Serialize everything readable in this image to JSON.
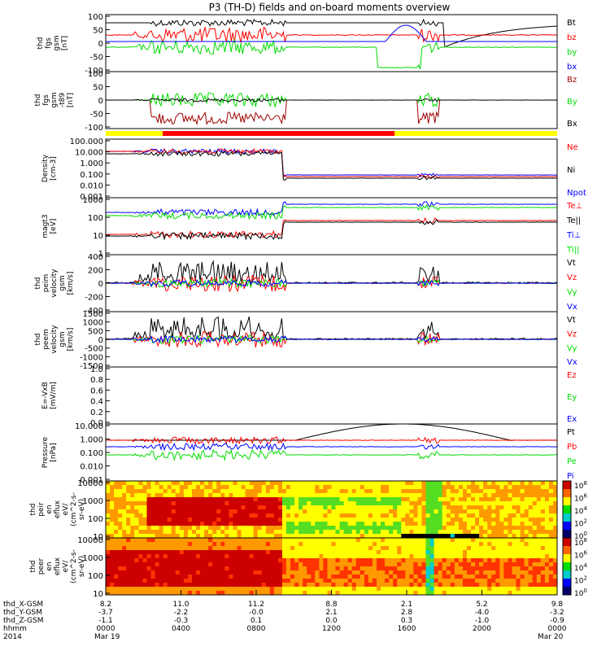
{
  "title": "P3 (TH-D) fields and on-board moments overview",
  "colors": {
    "black": "#000000",
    "red": "#ff0000",
    "green": "#00dd00",
    "blue": "#0000ff",
    "darkred": "#a00000",
    "yellow": "#ffff00"
  },
  "chart_data": {
    "type": "line",
    "x_ticks": [
      "0000",
      "0400",
      "0800",
      "1200",
      "1600",
      "2000",
      "0000"
    ],
    "dates": {
      "start": "Mar 19",
      "end": "Mar 20",
      "year": "2014"
    },
    "position_rows": [
      {
        "label": "thd_X-GSM",
        "values": [
          "8.2",
          "11.0",
          "11.2",
          "8.8",
          "2.1",
          "5.2",
          "9.8"
        ]
      },
      {
        "label": "thd_Y-GSM",
        "values": [
          "-3.7",
          "-2.2",
          "-0.0",
          "2.1",
          "2.8",
          "-4.0",
          "-3.2"
        ]
      },
      {
        "label": "thd_Z-GSM",
        "values": [
          "-1.1",
          "-0.3",
          "0.1",
          "0.0",
          "0.3",
          "-1.0",
          "-0.9"
        ]
      }
    ],
    "time_label": "hhmm",
    "mode_bar_colors": [
      "#ffff00",
      "#ff0000"
    ],
    "panels": [
      {
        "ylabel": [
          "thd",
          "fgs",
          "gsm",
          "[nT]"
        ],
        "yticks": [
          "100",
          "50",
          "0",
          "-50",
          "-100"
        ],
        "legend": [
          {
            "name": "Bt",
            "color": "#000000"
          },
          {
            "name": "bz",
            "color": "#ff0000"
          },
          {
            "name": "by",
            "color": "#00dd00"
          },
          {
            "name": "bx",
            "color": "#0000ff"
          }
        ]
      },
      {
        "ylabel": [
          "thd",
          "fgs",
          "gsm",
          "-t89",
          "[nT]"
        ],
        "yticks": [
          "100",
          "50",
          "0",
          "-50",
          "-100"
        ],
        "legend": [
          {
            "name": "Bz",
            "color": "#a00000"
          },
          {
            "name": "By",
            "color": "#00dd00"
          },
          {
            "name": "Bx",
            "color": "#000000"
          }
        ]
      },
      {
        "ylabel": [
          "Density",
          "[cm-3]"
        ],
        "yticks": [
          "100.000",
          "10.000",
          "1.000",
          "0.100",
          "0.010",
          "0.001"
        ],
        "legend": [
          {
            "name": "Ne",
            "color": "#ff0000"
          },
          {
            "name": "Ni",
            "color": "#000000"
          },
          {
            "name": "Npot",
            "color": "#0000ff"
          }
        ]
      },
      {
        "ylabel": [
          "magt3",
          "[eV]"
        ],
        "yticks": [
          "1000",
          "100",
          "10",
          "1"
        ],
        "legend": [
          {
            "name": "Te⊥",
            "color": "#ff0000"
          },
          {
            "name": "Te||",
            "color": "#000000"
          },
          {
            "name": "Ti⊥",
            "color": "#0000ff"
          },
          {
            "name": "Ti||",
            "color": "#00dd00"
          }
        ]
      },
      {
        "ylabel": [
          "thd",
          "peim",
          "velocity",
          "gsm",
          "[km/s]"
        ],
        "yticks": [
          "400",
          "200",
          "0",
          "-200",
          "-400"
        ],
        "legend": [
          {
            "name": "Vt",
            "color": "#000000"
          },
          {
            "name": "Vz",
            "color": "#ff0000"
          },
          {
            "name": "Vy",
            "color": "#00dd00"
          },
          {
            "name": "Vx",
            "color": "#0000ff"
          }
        ]
      },
      {
        "ylabel": [
          "thd",
          "peem",
          "velocity",
          "gsm",
          "[km/s]"
        ],
        "yticks": [
          "1500",
          "1000",
          "500",
          "0",
          "-500",
          "-1000",
          "-1500"
        ],
        "legend": [
          {
            "name": "Vt",
            "color": "#000000"
          },
          {
            "name": "Vz",
            "color": "#ff0000"
          },
          {
            "name": "Vy",
            "color": "#00dd00"
          },
          {
            "name": "Vx",
            "color": "#0000ff"
          }
        ]
      },
      {
        "ylabel": [
          "E=-VxB",
          "[mV/m]"
        ],
        "yticks": [
          "1.0",
          "0.8",
          "0.6",
          "0.4",
          "0.2",
          "0.0"
        ],
        "legend": [
          {
            "name": "Ez",
            "color": "#ff0000"
          },
          {
            "name": "Ey",
            "color": "#00dd00"
          },
          {
            "name": "Ex",
            "color": "#0000ff"
          }
        ]
      },
      {
        "ylabel": [
          "Pressure",
          "[nPa]"
        ],
        "yticks": [
          "10.000",
          "1.000",
          "0.100",
          "0.010",
          "0.001"
        ],
        "legend": [
          {
            "name": "Pt",
            "color": "#000000"
          },
          {
            "name": "Pb",
            "color": "#ff0000"
          },
          {
            "name": "Pe",
            "color": "#00dd00"
          },
          {
            "name": "Pi",
            "color": "#0000ff"
          }
        ]
      },
      {
        "ylabel": [
          "thd",
          "peir",
          "en",
          "eflux",
          "eV/",
          "(cm^2-s-",
          "sr-eV)"
        ],
        "yticks": [
          "10000",
          "1000",
          "100",
          "10"
        ],
        "colorbar": [
          "10^8",
          "10^6",
          "10^4",
          "10^2",
          "10^0"
        ]
      },
      {
        "ylabel": [
          "thd",
          "peer",
          "en",
          "eflux",
          "eV/",
          "(cm^2-s-",
          "sr-eV)"
        ],
        "yticks": [
          "10000",
          "1000",
          "100",
          "10"
        ],
        "colorbar": [
          "10^8",
          "10^6",
          "10^4",
          "10^2",
          "10^0"
        ]
      }
    ]
  }
}
